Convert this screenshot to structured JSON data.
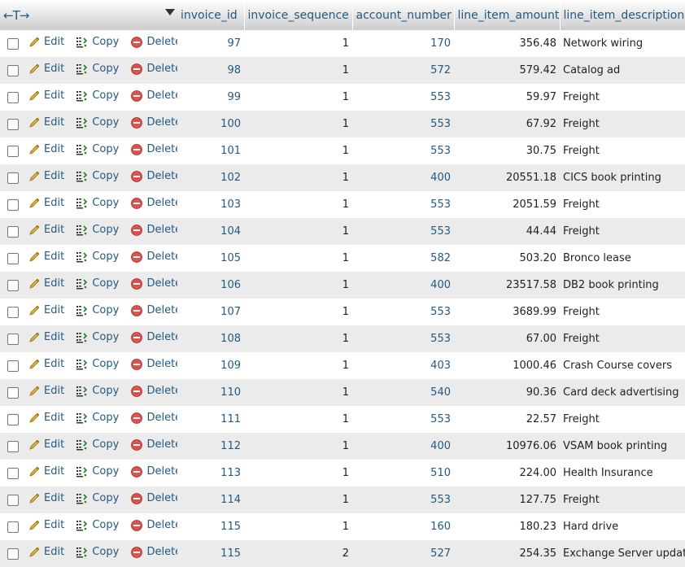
{
  "header": {
    "arrows": "←T→",
    "columns": [
      "invoice_id",
      "invoice_sequence",
      "account_number",
      "line_item_amount",
      "line_item_description"
    ]
  },
  "actions": {
    "edit": "Edit",
    "copy": "Copy",
    "delete": "Delete"
  },
  "rows": [
    {
      "invoice_id": "97",
      "invoice_sequence": "1",
      "account_number": "170",
      "line_item_amount": "356.48",
      "line_item_description": "Network wiring"
    },
    {
      "invoice_id": "98",
      "invoice_sequence": "1",
      "account_number": "572",
      "line_item_amount": "579.42",
      "line_item_description": "Catalog ad"
    },
    {
      "invoice_id": "99",
      "invoice_sequence": "1",
      "account_number": "553",
      "line_item_amount": "59.97",
      "line_item_description": "Freight"
    },
    {
      "invoice_id": "100",
      "invoice_sequence": "1",
      "account_number": "553",
      "line_item_amount": "67.92",
      "line_item_description": "Freight"
    },
    {
      "invoice_id": "101",
      "invoice_sequence": "1",
      "account_number": "553",
      "line_item_amount": "30.75",
      "line_item_description": "Freight"
    },
    {
      "invoice_id": "102",
      "invoice_sequence": "1",
      "account_number": "400",
      "line_item_amount": "20551.18",
      "line_item_description": "CICS book printing"
    },
    {
      "invoice_id": "103",
      "invoice_sequence": "1",
      "account_number": "553",
      "line_item_amount": "2051.59",
      "line_item_description": "Freight"
    },
    {
      "invoice_id": "104",
      "invoice_sequence": "1",
      "account_number": "553",
      "line_item_amount": "44.44",
      "line_item_description": "Freight"
    },
    {
      "invoice_id": "105",
      "invoice_sequence": "1",
      "account_number": "582",
      "line_item_amount": "503.20",
      "line_item_description": "Bronco lease"
    },
    {
      "invoice_id": "106",
      "invoice_sequence": "1",
      "account_number": "400",
      "line_item_amount": "23517.58",
      "line_item_description": "DB2 book printing"
    },
    {
      "invoice_id": "107",
      "invoice_sequence": "1",
      "account_number": "553",
      "line_item_amount": "3689.99",
      "line_item_description": "Freight"
    },
    {
      "invoice_id": "108",
      "invoice_sequence": "1",
      "account_number": "553",
      "line_item_amount": "67.00",
      "line_item_description": "Freight"
    },
    {
      "invoice_id": "109",
      "invoice_sequence": "1",
      "account_number": "403",
      "line_item_amount": "1000.46",
      "line_item_description": "Crash Course covers"
    },
    {
      "invoice_id": "110",
      "invoice_sequence": "1",
      "account_number": "540",
      "line_item_amount": "90.36",
      "line_item_description": "Card deck advertising"
    },
    {
      "invoice_id": "111",
      "invoice_sequence": "1",
      "account_number": "553",
      "line_item_amount": "22.57",
      "line_item_description": "Freight"
    },
    {
      "invoice_id": "112",
      "invoice_sequence": "1",
      "account_number": "400",
      "line_item_amount": "10976.06",
      "line_item_description": "VSAM book printing"
    },
    {
      "invoice_id": "113",
      "invoice_sequence": "1",
      "account_number": "510",
      "line_item_amount": "224.00",
      "line_item_description": "Health Insurance"
    },
    {
      "invoice_id": "114",
      "invoice_sequence": "1",
      "account_number": "553",
      "line_item_amount": "127.75",
      "line_item_description": "Freight"
    },
    {
      "invoice_id": "115",
      "invoice_sequence": "1",
      "account_number": "160",
      "line_item_amount": "180.23",
      "line_item_description": "Hard drive"
    },
    {
      "invoice_id": "115",
      "invoice_sequence": "2",
      "account_number": "527",
      "line_item_amount": "254.35",
      "line_item_description": "Exchange Server update"
    }
  ],
  "colors": {
    "link": "#235a81",
    "row_even": "#ebebeb",
    "row_odd": "#ffffff"
  },
  "icons": {
    "edit": "pencil-icon",
    "copy": "copy-icon",
    "delete": "delete-icon",
    "sort": "sort-down-icon"
  }
}
